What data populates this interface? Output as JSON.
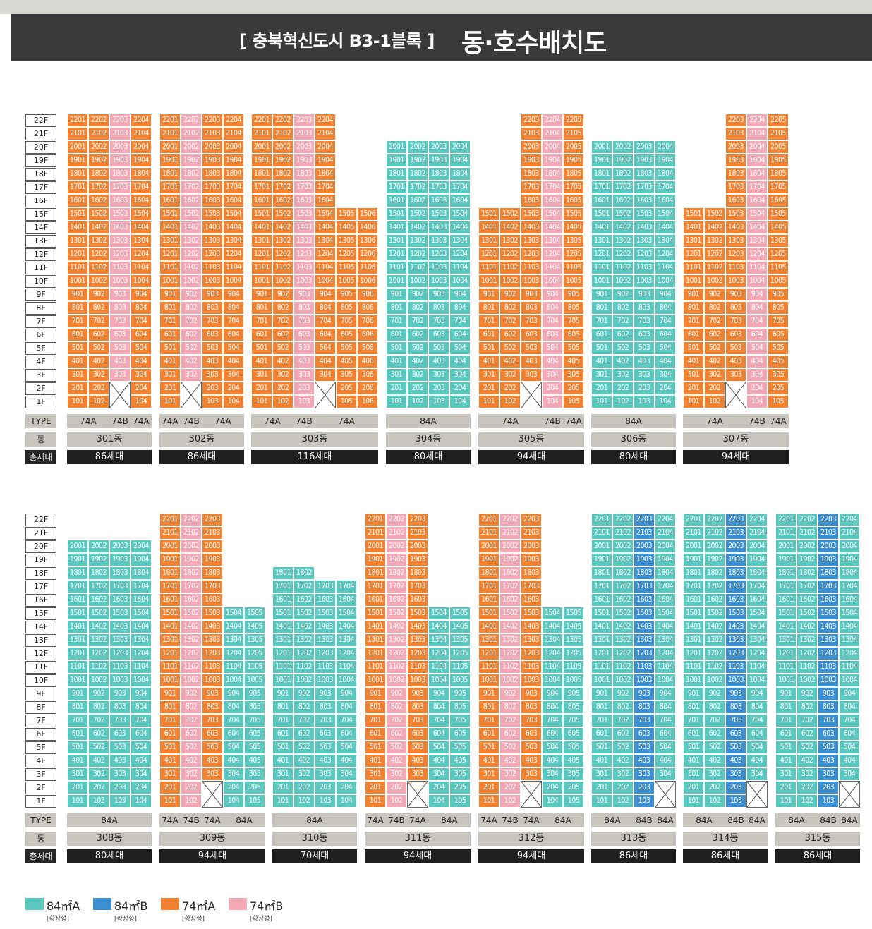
{
  "header": {
    "subtitle": "[ 충북혁신도시 B3-1블록 ]",
    "title": "동·호수배치도"
  },
  "colors": {
    "84A": "#5bc8c0",
    "84B": "#3b8fd0",
    "74A": "#f08232",
    "74B": "#f3a8b6"
  },
  "row_labels": {
    "type": "TYPE",
    "dong": "동",
    "total": "총세대"
  },
  "floors": [
    "1F",
    "2F",
    "3F",
    "4F",
    "5F",
    "6F",
    "7F",
    "8F",
    "9F",
    "10F",
    "11F",
    "12F",
    "13F",
    "14F",
    "15F",
    "16F",
    "17F",
    "18F",
    "19F",
    "20F",
    "21F",
    "22F"
  ],
  "buildings": [
    {
      "name": "301동",
      "total": "86세대",
      "columns": [
        {
          "t": "74A",
          "max": 22,
          "skip": []
        },
        {
          "t": "74A",
          "max": 22,
          "skip": []
        },
        {
          "t": "74B",
          "max": 22,
          "skip": [
            1,
            2
          ]
        },
        {
          "t": "74A",
          "max": 22,
          "skip": []
        }
      ],
      "types": [
        {
          "label": "74A",
          "span": 2
        },
        {
          "label": "74B",
          "span": 1
        },
        {
          "label": "74A",
          "span": 1
        }
      ]
    },
    {
      "name": "302동",
      "total": "86세대",
      "columns": [
        {
          "t": "74A",
          "max": 22,
          "skip": []
        },
        {
          "t": "74B",
          "max": 22,
          "skip": [
            1,
            2
          ]
        },
        {
          "t": "74A",
          "max": 22,
          "skip": []
        },
        {
          "t": "74A",
          "max": 22,
          "skip": []
        }
      ],
      "types": [
        {
          "label": "74A",
          "span": 1
        },
        {
          "label": "74B",
          "span": 1
        },
        {
          "label": "74A",
          "span": 2
        }
      ]
    },
    {
      "name": "303동",
      "total": "116세대",
      "columns": [
        {
          "t": "74A",
          "max": 22,
          "skip": []
        },
        {
          "t": "74A",
          "max": 22,
          "skip": []
        },
        {
          "t": "74B",
          "max": 22,
          "skip": []
        },
        {
          "t": "74A",
          "max": 22,
          "skip": [
            1,
            2
          ]
        },
        {
          "t": "74A",
          "max": 15,
          "skip": []
        },
        {
          "t": "74A",
          "max": 15,
          "skip": []
        }
      ],
      "types": [
        {
          "label": "74A",
          "span": 2
        },
        {
          "label": "74B",
          "span": 1
        },
        {
          "label": "74A",
          "span": 3
        }
      ]
    },
    {
      "name": "304동",
      "total": "80세대",
      "columns": [
        {
          "t": "84A",
          "max": 20,
          "skip": []
        },
        {
          "t": "84A",
          "max": 20,
          "skip": []
        },
        {
          "t": "84A",
          "max": 20,
          "skip": []
        },
        {
          "t": "84A",
          "max": 20,
          "skip": []
        }
      ],
      "types": [
        {
          "label": "84A",
          "span": 4
        }
      ]
    },
    {
      "name": "305동",
      "total": "94세대",
      "columns": [
        {
          "t": "74A",
          "max": 15,
          "skip": []
        },
        {
          "t": "74A",
          "max": 15,
          "skip": []
        },
        {
          "t": "74A",
          "max": 22,
          "skip": [
            1,
            2
          ]
        },
        {
          "t": "74B",
          "max": 22,
          "skip": []
        },
        {
          "t": "74A",
          "max": 22,
          "skip": []
        }
      ],
      "types": [
        {
          "label": "74A",
          "span": 3
        },
        {
          "label": "74B",
          "span": 1
        },
        {
          "label": "74A",
          "span": 1
        }
      ]
    },
    {
      "name": "306동",
      "total": "80세대",
      "columns": [
        {
          "t": "84A",
          "max": 20,
          "skip": []
        },
        {
          "t": "84A",
          "max": 20,
          "skip": []
        },
        {
          "t": "84A",
          "max": 20,
          "skip": []
        },
        {
          "t": "84A",
          "max": 20,
          "skip": []
        }
      ],
      "types": [
        {
          "label": "84A",
          "span": 4
        }
      ]
    },
    {
      "name": "307동",
      "total": "94세대",
      "columns": [
        {
          "t": "74A",
          "max": 15,
          "skip": []
        },
        {
          "t": "74A",
          "max": 15,
          "skip": []
        },
        {
          "t": "74A",
          "max": 22,
          "skip": [
            1,
            2
          ]
        },
        {
          "t": "74B",
          "max": 22,
          "skip": []
        },
        {
          "t": "74A",
          "max": 22,
          "skip": []
        }
      ],
      "types": [
        {
          "label": "74A",
          "span": 3
        },
        {
          "label": "74B",
          "span": 1
        },
        {
          "label": "74A",
          "span": 1
        }
      ]
    },
    {
      "name": "308동",
      "total": "80세대",
      "columns": [
        {
          "t": "84A",
          "max": 20,
          "skip": []
        },
        {
          "t": "84A",
          "max": 20,
          "skip": []
        },
        {
          "t": "84A",
          "max": 20,
          "skip": []
        },
        {
          "t": "84A",
          "max": 20,
          "skip": []
        }
      ],
      "types": [
        {
          "label": "84A",
          "span": 4
        }
      ]
    },
    {
      "name": "309동",
      "total": "94세대",
      "columns": [
        {
          "t": "74A",
          "max": 22,
          "skip": []
        },
        {
          "t": "74B",
          "max": 22,
          "skip": []
        },
        {
          "t": "74A",
          "max": 22,
          "skip": [
            1,
            2
          ]
        },
        {
          "t": "84A",
          "max": 15,
          "skip": []
        },
        {
          "t": "84A",
          "max": 15,
          "skip": []
        }
      ],
      "types": [
        {
          "label": "74A",
          "span": 1
        },
        {
          "label": "74B",
          "span": 1
        },
        {
          "label": "74A",
          "span": 1
        },
        {
          "label": "84A",
          "span": 2
        }
      ]
    },
    {
      "name": "310동",
      "total": "70세대",
      "columns": [
        {
          "t": "84A",
          "max": 18,
          "skip": []
        },
        {
          "t": "84A",
          "max": 18,
          "skip": []
        },
        {
          "t": "84A",
          "max": 17,
          "skip": []
        },
        {
          "t": "84A",
          "max": 17,
          "skip": []
        }
      ],
      "types": [
        {
          "label": "84A",
          "span": 4
        }
      ]
    },
    {
      "name": "311동",
      "total": "94세대",
      "columns": [
        {
          "t": "74A",
          "max": 22,
          "skip": []
        },
        {
          "t": "74B",
          "max": 22,
          "skip": []
        },
        {
          "t": "74A",
          "max": 22,
          "skip": [
            1,
            2
          ]
        },
        {
          "t": "84A",
          "max": 15,
          "skip": []
        },
        {
          "t": "84A",
          "max": 15,
          "skip": []
        }
      ],
      "types": [
        {
          "label": "74A",
          "span": 1
        },
        {
          "label": "74B",
          "span": 1
        },
        {
          "label": "74A",
          "span": 1
        },
        {
          "label": "84A",
          "span": 2
        }
      ]
    },
    {
      "name": "312동",
      "total": "94세대",
      "columns": [
        {
          "t": "74A",
          "max": 22,
          "skip": []
        },
        {
          "t": "74B",
          "max": 22,
          "skip": []
        },
        {
          "t": "74A",
          "max": 22,
          "skip": [
            1,
            2
          ]
        },
        {
          "t": "84A",
          "max": 15,
          "skip": []
        },
        {
          "t": "84A",
          "max": 15,
          "skip": []
        }
      ],
      "types": [
        {
          "label": "74A",
          "span": 1
        },
        {
          "label": "74B",
          "span": 1
        },
        {
          "label": "74A",
          "span": 1
        },
        {
          "label": "84A",
          "span": 2
        }
      ]
    },
    {
      "name": "313동",
      "total": "86세대",
      "columns": [
        {
          "t": "84A",
          "max": 22,
          "skip": []
        },
        {
          "t": "84A",
          "max": 22,
          "skip": []
        },
        {
          "t": "84B",
          "max": 22,
          "skip": []
        },
        {
          "t": "84A",
          "max": 22,
          "skip": [
            1,
            2
          ]
        }
      ],
      "types": [
        {
          "label": "84A",
          "span": 2
        },
        {
          "label": "84B",
          "span": 1
        },
        {
          "label": "84A",
          "span": 1
        }
      ]
    },
    {
      "name": "314동",
      "total": "86세대",
      "columns": [
        {
          "t": "84A",
          "max": 22,
          "skip": []
        },
        {
          "t": "84A",
          "max": 22,
          "skip": []
        },
        {
          "t": "84B",
          "max": 22,
          "skip": []
        },
        {
          "t": "84A",
          "max": 22,
          "skip": [
            1,
            2
          ]
        }
      ],
      "types": [
        {
          "label": "84A",
          "span": 2
        },
        {
          "label": "84B",
          "span": 1
        },
        {
          "label": "84A",
          "span": 1
        }
      ]
    },
    {
      "name": "315동",
      "total": "86세대",
      "columns": [
        {
          "t": "84A",
          "max": 22,
          "skip": []
        },
        {
          "t": "84A",
          "max": 22,
          "skip": []
        },
        {
          "t": "84B",
          "max": 22,
          "skip": []
        },
        {
          "t": "84A",
          "max": 22,
          "skip": [
            1,
            2
          ]
        }
      ],
      "types": [
        {
          "label": "84A",
          "span": 2
        },
        {
          "label": "84B",
          "span": 1
        },
        {
          "label": "84A",
          "span": 1
        }
      ]
    }
  ],
  "legend": [
    {
      "type": "84A",
      "label": "84㎡A",
      "sub": "[확장형]"
    },
    {
      "type": "84B",
      "label": "84㎡B",
      "sub": "[확장형]"
    },
    {
      "type": "74A",
      "label": "74㎡A",
      "sub": "[확장형]"
    },
    {
      "type": "74B",
      "label": "74㎡B",
      "sub": "[확장형]"
    }
  ]
}
